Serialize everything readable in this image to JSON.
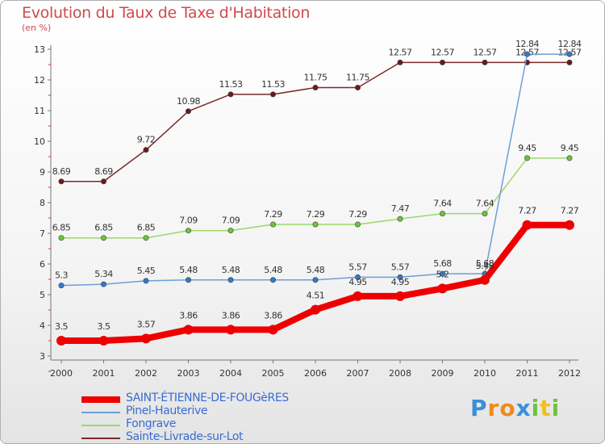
{
  "chart_data": {
    "type": "line",
    "title": "Evolution du Taux de Taxe d'Habitation",
    "subtitle": "(en %)",
    "x": [
      "2000",
      "2001",
      "2002",
      "2003",
      "2004",
      "2005",
      "2006",
      "2007",
      "2008",
      "2009",
      "2010",
      "2011",
      "2012"
    ],
    "ylim": [
      3,
      13
    ],
    "yticks": [
      3,
      4,
      5,
      6,
      7,
      8,
      9,
      10,
      11,
      12,
      13
    ],
    "grid": false,
    "series": [
      {
        "name": "Sainte-Livrade-sur-Lot",
        "color": "#7a2b2b",
        "marker": "#6a1a1a",
        "values": [
          8.69,
          8.69,
          9.72,
          10.98,
          11.53,
          11.53,
          11.75,
          11.75,
          12.57,
          12.57,
          12.57,
          12.57,
          12.57
        ],
        "labels": [
          "8.69",
          "8.69",
          "9.72",
          "10.98",
          "11.53",
          "11.53",
          "11.75",
          "11.75",
          "12.57",
          "12.57",
          "12.57",
          "12.57",
          "12.57"
        ]
      },
      {
        "name": "Fongrave",
        "color": "#9ad86a",
        "marker": "#6cc43a",
        "values": [
          6.85,
          6.85,
          6.85,
          7.09,
          7.09,
          7.29,
          7.29,
          7.29,
          7.47,
          7.64,
          7.64,
          9.45,
          9.45
        ],
        "labels": [
          "6.85",
          "6.85",
          "6.85",
          "7.09",
          "7.09",
          "7.29",
          "7.29",
          "7.29",
          "7.47",
          "7.64",
          "7.64",
          "9.45",
          "9.45"
        ]
      },
      {
        "name": "Pinel-Hauterive",
        "color": "#6b9fd6",
        "marker": "#2f7cc8",
        "values": [
          5.3,
          5.34,
          5.45,
          5.48,
          5.48,
          5.48,
          5.48,
          5.57,
          5.57,
          5.68,
          5.68,
          12.84,
          12.84
        ],
        "labels": [
          "5.3",
          "5.34",
          "5.45",
          "5.48",
          "5.48",
          "5.48",
          "5.48",
          "5.57",
          "5.57",
          "5.68",
          "5.68",
          "12.84",
          "12.84"
        ]
      },
      {
        "name": "SAINT-ÉTIENNE-DE-FOUGèRES",
        "color": "#ee0000",
        "marker": "#ee0000",
        "values": [
          3.5,
          3.5,
          3.57,
          3.86,
          3.86,
          3.86,
          4.51,
          4.95,
          4.95,
          5.2,
          5.48,
          7.27,
          7.27
        ],
        "labels": [
          "3.5",
          "3.5",
          "3.57",
          "3.86",
          "3.86",
          "3.86",
          "4.51",
          "4.95",
          "4.95",
          "5.2",
          "5.48",
          "7.27",
          "7.27"
        ]
      }
    ]
  },
  "legend": [
    {
      "label": "SAINT-ÉTIENNE-DE-FOUGèRES",
      "color": "#ee0000"
    },
    {
      "label": "Pinel-Hauterive",
      "color": "#6b9fd6"
    },
    {
      "label": "Fongrave",
      "color": "#9ad86a"
    },
    {
      "label": "Sainte-Livrade-sur-Lot",
      "color": "#7a2b2b"
    }
  ],
  "logo": {
    "letters": [
      "P",
      "r",
      "o",
      "x",
      "i",
      "t",
      "i"
    ],
    "colors": [
      "#3a8fd8",
      "#f08a1c",
      "#f08a1c",
      "#3a8fd8",
      "#6cc43a",
      "#f0c020",
      "#6cc43a"
    ]
  }
}
